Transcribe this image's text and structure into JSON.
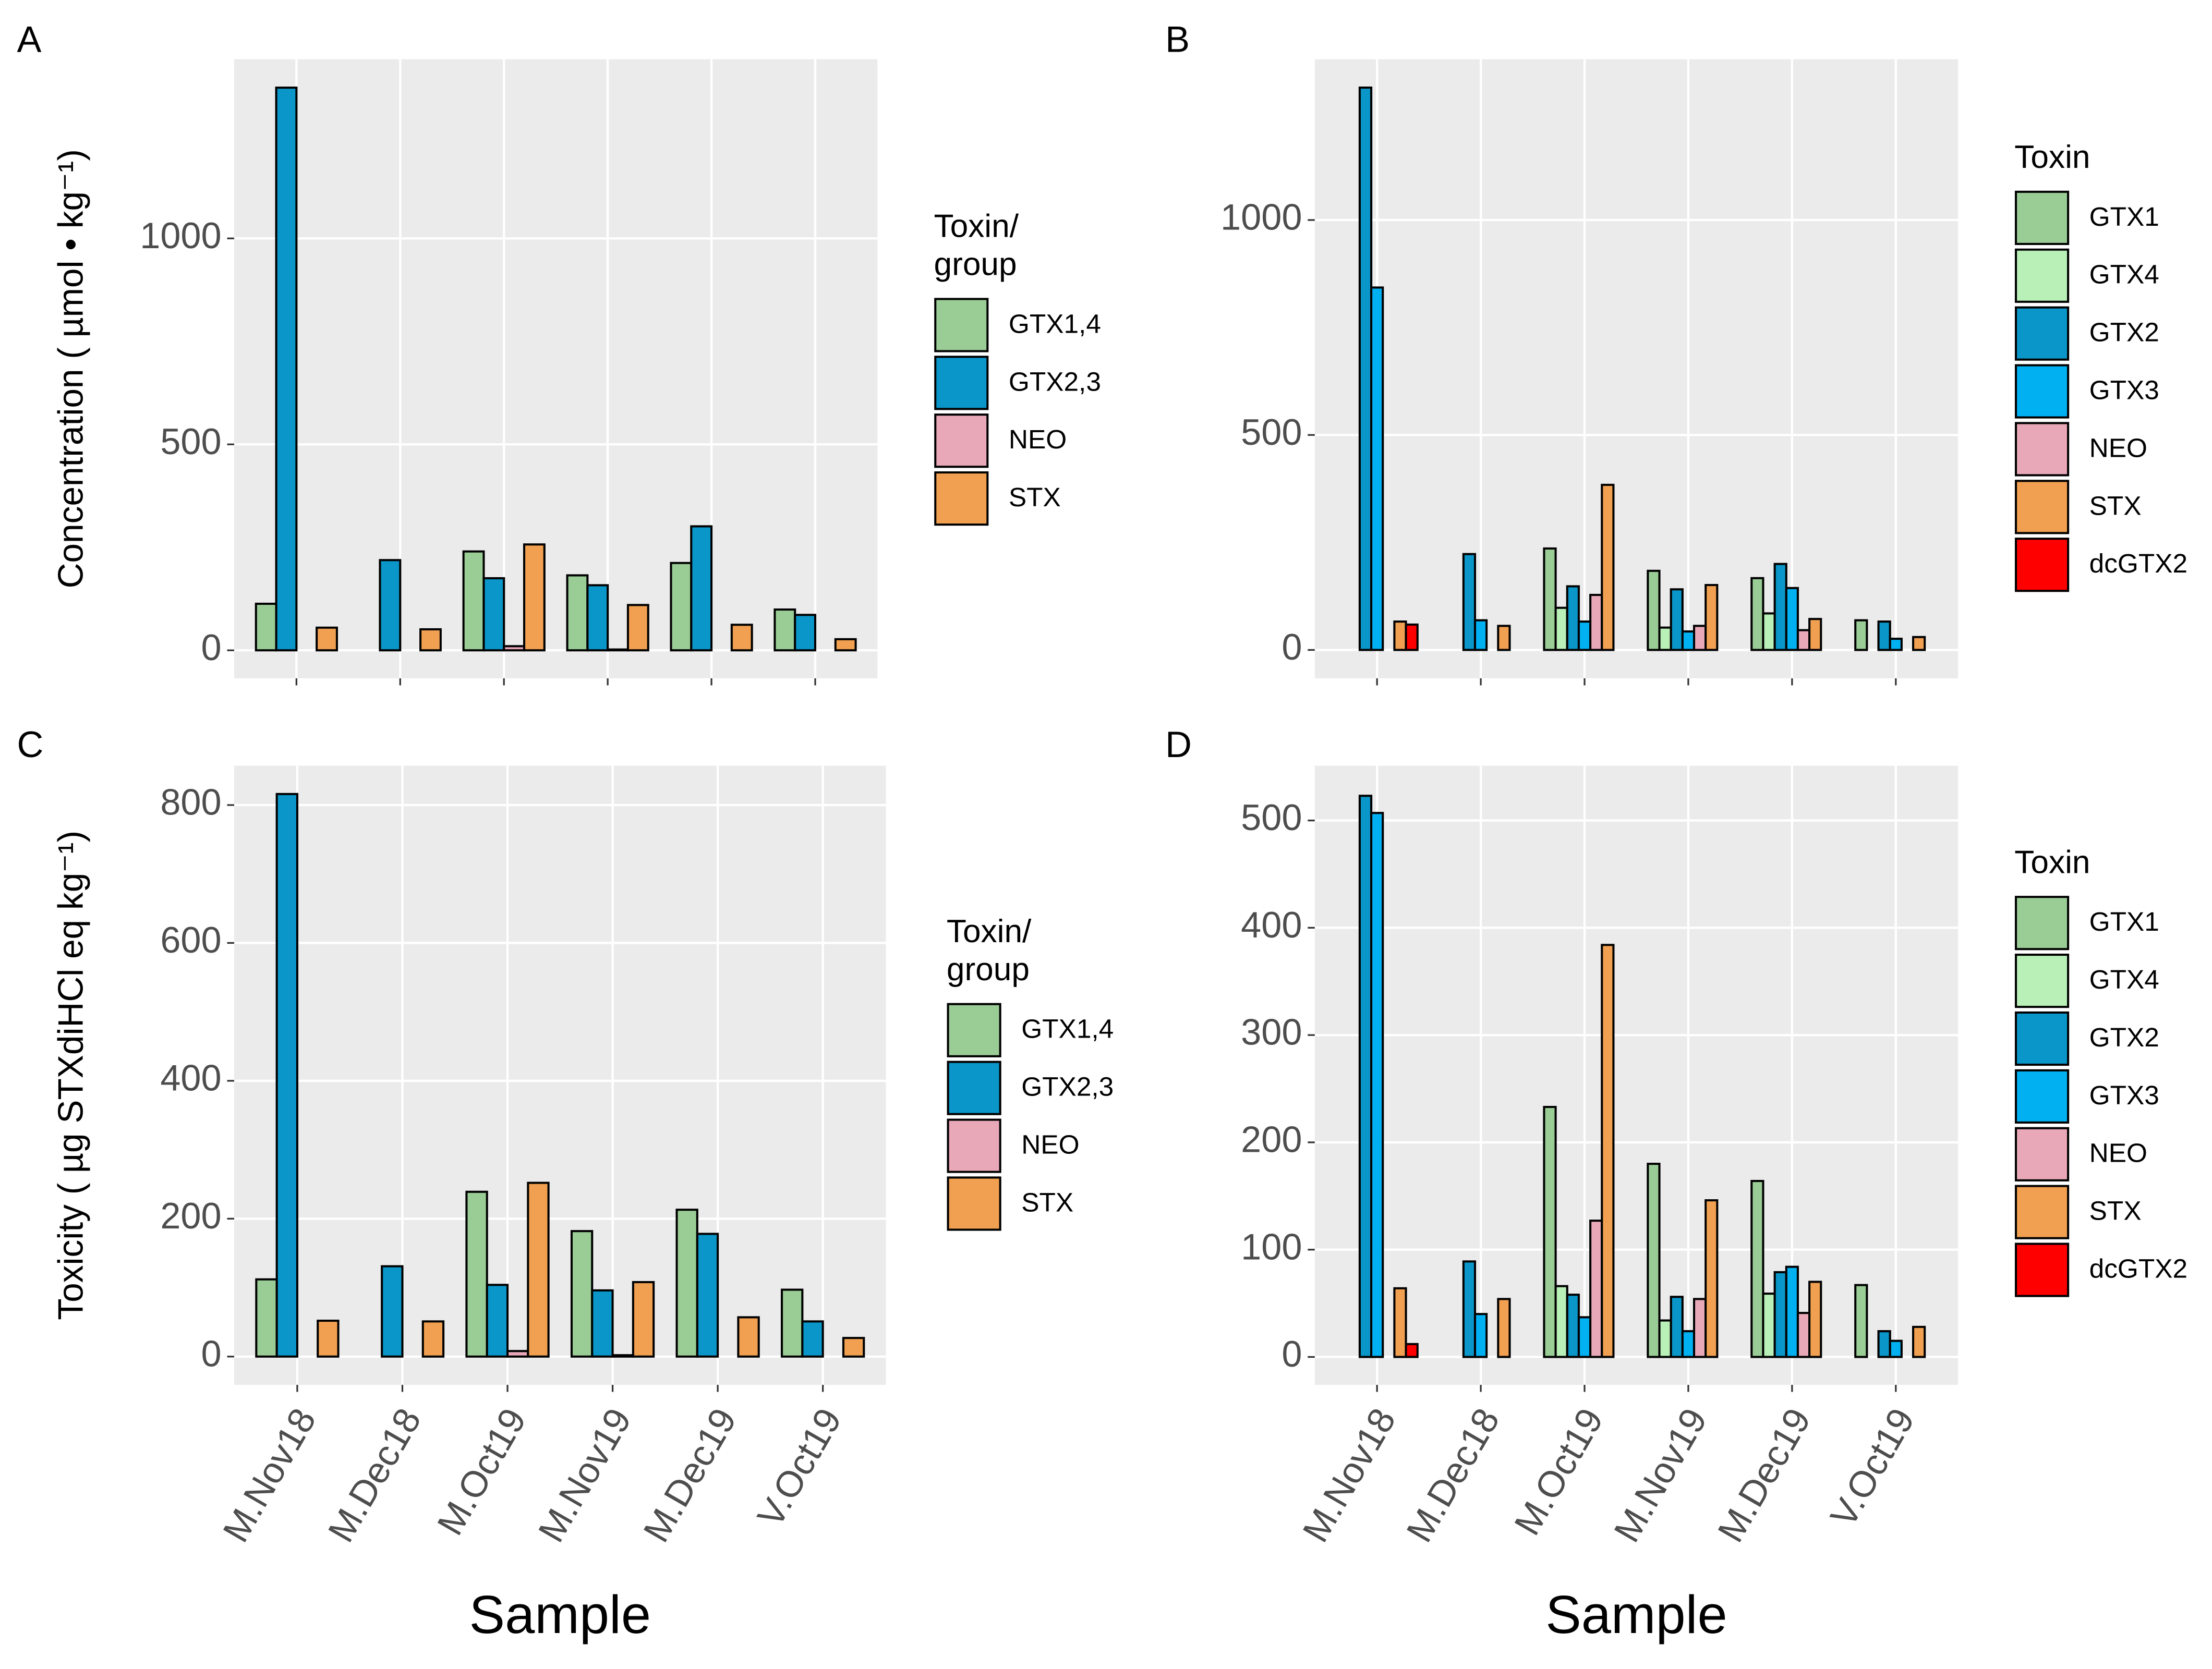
{
  "chart_data": [
    {
      "type": "bar",
      "label": "A",
      "ylabel": "Concentration ( µmol • kg⁻¹)",
      "categories": [
        null,
        null,
        null,
        null,
        null,
        null
      ],
      "legend_title": [
        "Toxin/",
        "group"
      ],
      "ylim": [
        -68,
        1435
      ],
      "yticks": [
        0,
        500,
        1000
      ],
      "series": [
        {
          "name": "GTX1,4",
          "color": "#9ACD96",
          "values": [
            113,
            0,
            240,
            182,
            212,
            99
          ]
        },
        {
          "name": "GTX2,3",
          "color": "#0A96C8",
          "values": [
            1366,
            219,
            175,
            158,
            301,
            86
          ]
        },
        {
          "name": "NEO",
          "color": "#E8A8B8",
          "values": [
            0,
            0,
            10,
            2,
            0,
            0
          ]
        },
        {
          "name": "STX",
          "color": "#F0A050",
          "values": [
            55,
            51,
            257,
            110,
            62,
            27
          ]
        }
      ]
    },
    {
      "type": "bar",
      "label": "B",
      "categories": [
        null,
        null,
        null,
        null,
        null,
        null
      ],
      "legend_title": [
        "Toxin"
      ],
      "ylim": [
        -66,
        1374
      ],
      "yticks": [
        0,
        500,
        1000
      ],
      "series": [
        {
          "name": "GTX1",
          "color": "#9ACD96",
          "values": [
            0,
            0,
            236,
            184,
            167,
            69
          ]
        },
        {
          "name": "GTX4",
          "color": "#B8F0B8",
          "values": [
            0,
            0,
            98,
            52,
            85,
            0
          ]
        },
        {
          "name": "GTX2",
          "color": "#0A96C8",
          "values": [
            1308,
            223,
            148,
            141,
            200,
            66
          ]
        },
        {
          "name": "GTX3",
          "color": "#00B0F0",
          "values": [
            843,
            69,
            66,
            43,
            144,
            26
          ]
        },
        {
          "name": "NEO",
          "color": "#E8A8B8",
          "values": [
            0,
            0,
            128,
            56,
            46,
            0
          ]
        },
        {
          "name": "STX",
          "color": "#F0A050",
          "values": [
            66,
            56,
            384,
            151,
            72,
            30
          ]
        },
        {
          "name": "dcGTX2",
          "color": "#FF0000",
          "values": [
            59,
            0,
            0,
            0,
            0,
            0
          ]
        }
      ]
    },
    {
      "type": "bar",
      "label": "C",
      "ylabel": "Toxicity ( µg STXdiHCl eq  kg⁻¹)",
      "xlabel": "Sample",
      "categories": [
        "M.Nov18",
        "M.Dec18",
        "M.Oct19",
        "M.Nov19",
        "M.Dec19",
        "V.Oct19"
      ],
      "legend_title": [
        "Toxin/",
        "group"
      ],
      "ylim": [
        -41,
        857
      ],
      "yticks": [
        0,
        200,
        400,
        600,
        800
      ],
      "series": [
        {
          "name": "GTX1,4",
          "color": "#9ACD96",
          "values": [
            112,
            0,
            239,
            182,
            213,
            97
          ]
        },
        {
          "name": "GTX2,3",
          "color": "#0A96C8",
          "values": [
            816,
            131,
            104,
            96,
            178,
            51
          ]
        },
        {
          "name": "NEO",
          "color": "#E8A8B8",
          "values": [
            0,
            0,
            8,
            2,
            0,
            0
          ]
        },
        {
          "name": "STX",
          "color": "#F0A050",
          "values": [
            52,
            51,
            252,
            108,
            57,
            27
          ]
        }
      ]
    },
    {
      "type": "bar",
      "label": "D",
      "xlabel": "Sample",
      "categories": [
        "M.Nov18",
        "M.Dec18",
        "M.Oct19",
        "M.Nov19",
        "M.Dec19",
        "V.Oct19"
      ],
      "legend_title": [
        "Toxin"
      ],
      "ylim": [
        -26,
        551
      ],
      "yticks": [
        0,
        100,
        200,
        300,
        400,
        500
      ],
      "series": [
        {
          "name": "GTX1",
          "color": "#9ACD96",
          "values": [
            0,
            0,
            233,
            180,
            164,
            67
          ]
        },
        {
          "name": "GTX4",
          "color": "#B8F0B8",
          "values": [
            0,
            0,
            66,
            34,
            59,
            0
          ]
        },
        {
          "name": "GTX2",
          "color": "#0A96C8",
          "values": [
            523,
            89,
            58,
            56,
            79,
            24
          ]
        },
        {
          "name": "GTX3",
          "color": "#00B0F0",
          "values": [
            507,
            40,
            37,
            24,
            84,
            15
          ]
        },
        {
          "name": "NEO",
          "color": "#E8A8B8",
          "values": [
            0,
            0,
            127,
            54,
            41,
            0
          ]
        },
        {
          "name": "STX",
          "color": "#F0A050",
          "values": [
            64,
            54,
            384,
            146,
            70,
            28
          ]
        },
        {
          "name": "dcGTX2",
          "color": "#FF0000",
          "values": [
            12,
            0,
            0,
            0,
            0,
            0
          ]
        }
      ]
    }
  ]
}
